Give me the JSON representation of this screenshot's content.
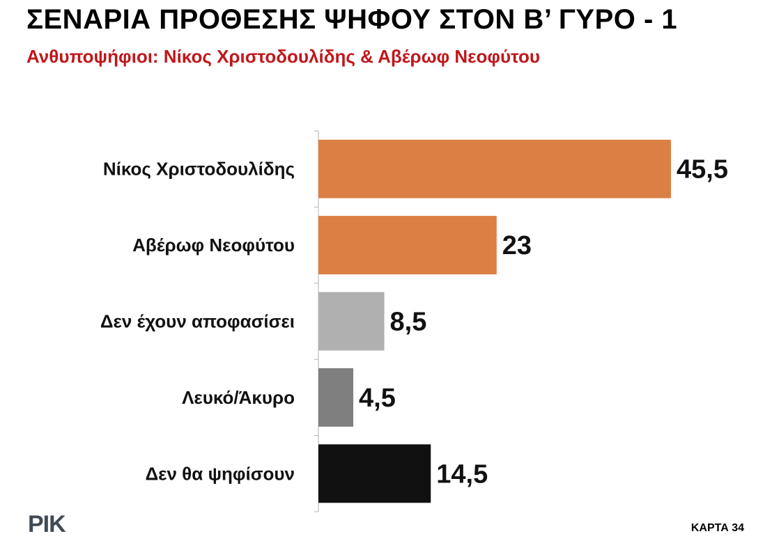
{
  "title": "ΣΕΝΑΡΙΑ ΠΡΟΘΕΣΗΣ ΨΗΦΟΥ ΣΤΟΝ Β’ ΓΥΡΟ - 1",
  "subtitle": "Ανθυποψήφιοι: Νίκος Χριστοδουλίδης & Αβέρωφ Νεοφύτου",
  "logo_text": "ΡΙΚ",
  "card_number": "ΚΑΡΤΑ 34",
  "colors": {
    "subtitle": "#c0171b",
    "axis": "#b0b0b0"
  },
  "chart_data": {
    "type": "bar",
    "orientation": "horizontal",
    "categories": [
      "Νίκος Χριστοδουλίδης",
      "Αβέρωφ Νεοφύτου",
      "Δεν έχουν αποφασίσει",
      "Λευκό/Άκυρο",
      "Δεν θα ψηφίσουν"
    ],
    "values": [
      45.5,
      23,
      8.5,
      4.5,
      14.5
    ],
    "value_labels": [
      "45,5",
      "23",
      "8,5",
      "4,5",
      "14,5"
    ],
    "bar_colors": [
      "#dc7f45",
      "#dc7f45",
      "#b0b0b0",
      "#7f7f7f",
      "#111111"
    ],
    "xlim": [
      0,
      50
    ],
    "grid": false,
    "legend": "none"
  }
}
